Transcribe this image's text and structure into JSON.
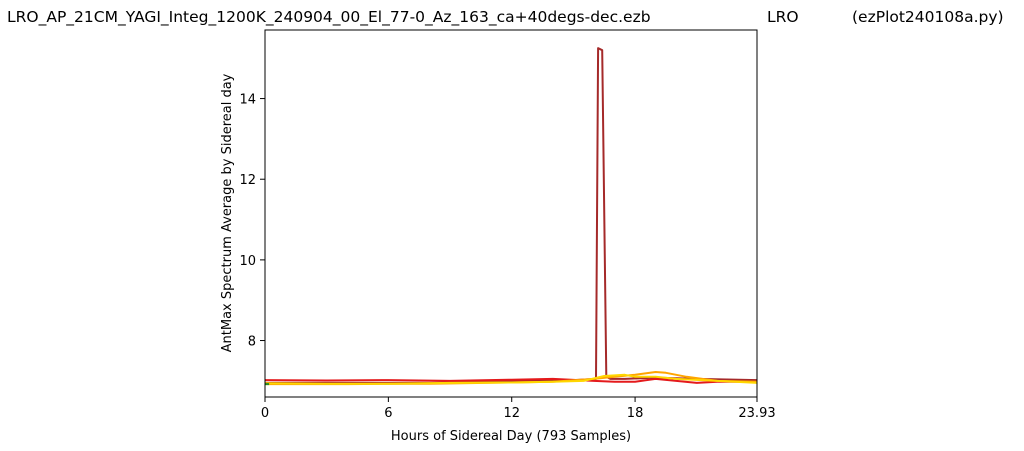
{
  "title": {
    "left": "LRO_AP_21CM_YAGI_Integ_1200K_240904_00_El_77-0_Az_163_ca+40degs-dec.ezb",
    "middle": "LRO",
    "right": "(ezPlot240108a.py)"
  },
  "chart_data": {
    "type": "line",
    "xlabel": "Hours of Sidereal Day  (793 Samples)",
    "ylabel": "AntMax Spectrum Average by Sidereal day",
    "xlim": [
      0,
      23.93
    ],
    "ylim": [
      6.6,
      15.7
    ],
    "x_ticks": [
      0,
      6,
      12,
      18,
      23.93
    ],
    "x_tick_labels": [
      "0",
      "6",
      "12",
      "18",
      "23.93"
    ],
    "y_ticks": [
      8,
      10,
      12,
      14
    ],
    "y_tick_labels": [
      "8",
      "10",
      "12",
      "14"
    ],
    "grid": false,
    "legend": "none",
    "series": [
      {
        "color": "#A52A2A",
        "x": [
          0,
          4,
          8,
          12,
          15,
          16.1,
          16.2,
          16.4,
          16.6,
          16.8,
          17.5,
          19,
          21,
          23.93
        ],
        "y": [
          6.95,
          6.95,
          6.95,
          7.0,
          7.02,
          7.05,
          15.25,
          15.2,
          7.1,
          7.05,
          7.05,
          7.08,
          7.05,
          7.02
        ]
      },
      {
        "color": "#E41A1C",
        "x": [
          0,
          3,
          6,
          9,
          12,
          14,
          16,
          17,
          18,
          19,
          20,
          21,
          22,
          23.93
        ],
        "y": [
          7.02,
          7.01,
          7.02,
          7.0,
          7.03,
          7.05,
          7.0,
          6.98,
          6.98,
          7.05,
          7.0,
          6.95,
          6.98,
          6.98
        ]
      },
      {
        "color": "#FFA500",
        "x": [
          0,
          4,
          8,
          12,
          14,
          16,
          17,
          18,
          19,
          19.5,
          20.5,
          22,
          23.93
        ],
        "y": [
          6.92,
          6.92,
          6.93,
          6.96,
          6.98,
          7.05,
          7.1,
          7.15,
          7.22,
          7.2,
          7.1,
          7.0,
          6.98
        ]
      },
      {
        "color": "#FFD700",
        "x": [
          0,
          3,
          6,
          9,
          12,
          14,
          15.5,
          16.5,
          17.5,
          18,
          19,
          20,
          22,
          23.93
        ],
        "y": [
          6.94,
          6.93,
          6.93,
          6.95,
          6.96,
          6.98,
          7.0,
          7.12,
          7.15,
          7.1,
          7.1,
          7.05,
          7.0,
          6.95
        ]
      },
      {
        "color": "#228B22",
        "x": [
          0,
          0.2
        ],
        "y": [
          6.92,
          6.92
        ]
      }
    ]
  }
}
